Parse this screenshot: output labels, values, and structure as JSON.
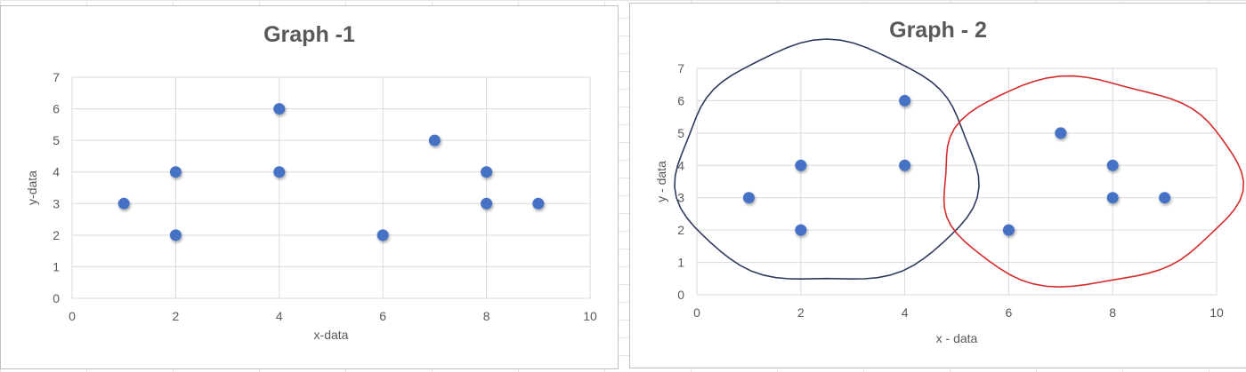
{
  "chart_data": [
    {
      "type": "scatter",
      "title": "Graph -1",
      "xlabel": "x-data",
      "ylabel": "y-data",
      "xlim": [
        0,
        10
      ],
      "ylim": [
        0,
        7
      ],
      "xticks": [
        "0",
        "2",
        "4",
        "6",
        "8",
        "10"
      ],
      "yticks": [
        "0",
        "1",
        "2",
        "3",
        "4",
        "5",
        "6",
        "7"
      ],
      "grid": true,
      "marker_color": "#4472C4",
      "points": [
        {
          "x": 1,
          "y": 3
        },
        {
          "x": 2,
          "y": 4
        },
        {
          "x": 2,
          "y": 2
        },
        {
          "x": 4,
          "y": 6
        },
        {
          "x": 4,
          "y": 4
        },
        {
          "x": 6,
          "y": 2
        },
        {
          "x": 7,
          "y": 5
        },
        {
          "x": 8,
          "y": 4
        },
        {
          "x": 8,
          "y": 3
        },
        {
          "x": 9,
          "y": 3
        }
      ]
    },
    {
      "type": "scatter",
      "title": "Graph - 2",
      "xlabel": "x - data",
      "ylabel": "y - data",
      "xlim": [
        0,
        10
      ],
      "ylim": [
        0,
        7
      ],
      "xticks": [
        "0",
        "2",
        "4",
        "6",
        "8",
        "10"
      ],
      "yticks": [
        "0",
        "1",
        "2",
        "3",
        "4",
        "5",
        "6",
        "7"
      ],
      "grid": true,
      "marker_color": "#4472C4",
      "points": [
        {
          "x": 1,
          "y": 3
        },
        {
          "x": 2,
          "y": 4
        },
        {
          "x": 2,
          "y": 2
        },
        {
          "x": 4,
          "y": 6
        },
        {
          "x": 4,
          "y": 4
        },
        {
          "x": 6,
          "y": 2
        },
        {
          "x": 7,
          "y": 5
        },
        {
          "x": 8,
          "y": 4
        },
        {
          "x": 8,
          "y": 3
        },
        {
          "x": 9,
          "y": 3
        }
      ],
      "cluster_outlines": [
        {
          "color": "#2E3B5C",
          "members": [
            [
              1,
              3
            ],
            [
              2,
              4
            ],
            [
              2,
              2
            ],
            [
              4,
              6
            ],
            [
              4,
              4
            ]
          ]
        },
        {
          "color": "#D62B2B",
          "members": [
            [
              6,
              2
            ],
            [
              7,
              5
            ],
            [
              8,
              4
            ],
            [
              8,
              3
            ],
            [
              9,
              3
            ]
          ]
        }
      ]
    }
  ]
}
